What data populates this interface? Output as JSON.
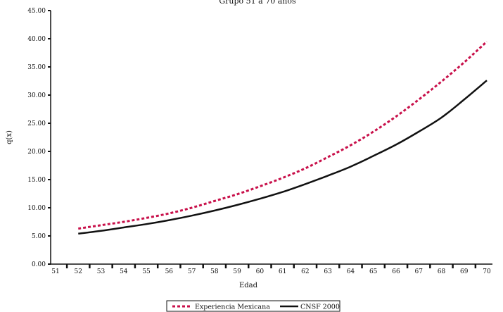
{
  "chart_data": {
    "type": "line",
    "title": "Grupo 51 a 70 años",
    "xlabel": "Edad",
    "ylabel": "q(x)",
    "x_categories": [
      "51",
      "52",
      "53",
      "54",
      "55",
      "56",
      "57",
      "58",
      "59",
      "60",
      "61",
      "62",
      "63",
      "64",
      "65",
      "66",
      "67",
      "68",
      "69",
      "70"
    ],
    "y_ticks": [
      "0.00",
      "5.00",
      "10.00",
      "15.00",
      "20.00",
      "25.00",
      "30.00",
      "35.00",
      "40.00",
      "45.00"
    ],
    "ylim": [
      0,
      45
    ],
    "grid": false,
    "legend_position": "bottom-center",
    "series": [
      {
        "name": "Experiencia Mexicana",
        "color": "#c8104a",
        "style": "dashed",
        "x": [
          52,
          53,
          54,
          55,
          56,
          57,
          58,
          59,
          60,
          61,
          62,
          63,
          64,
          65,
          66,
          67,
          68,
          69,
          70
        ],
        "values": [
          6.3,
          6.9,
          7.5,
          8.2,
          9.0,
          10.0,
          11.2,
          12.4,
          13.8,
          15.3,
          17.0,
          19.0,
          21.1,
          23.5,
          26.2,
          29.2,
          32.4,
          35.8,
          39.5
        ]
      },
      {
        "name": "CNSF 2000",
        "color": "#111111",
        "style": "solid",
        "x": [
          52,
          53,
          54,
          55,
          56,
          57,
          58,
          59,
          60,
          61,
          62,
          63,
          64,
          65,
          66,
          67,
          68,
          69,
          70
        ],
        "values": [
          5.4,
          5.9,
          6.5,
          7.1,
          7.8,
          8.6,
          9.5,
          10.5,
          11.6,
          12.8,
          14.2,
          15.7,
          17.3,
          19.2,
          21.2,
          23.5,
          26.0,
          29.2,
          32.6
        ]
      }
    ]
  }
}
